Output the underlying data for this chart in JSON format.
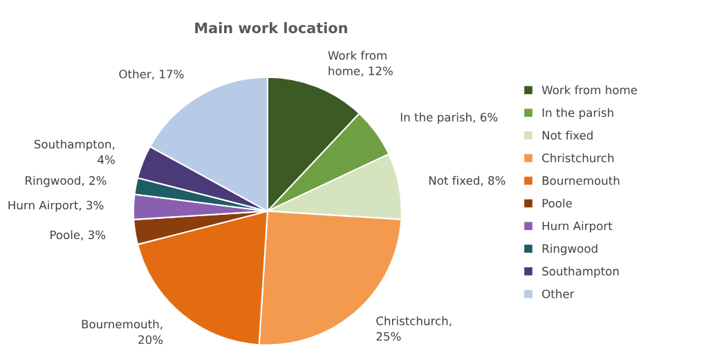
{
  "chart_data": {
    "type": "pie",
    "title": "Main work location",
    "categories": [
      "Work from home",
      "In the parish",
      "Not fixed",
      "Christchurch",
      "Bournemouth",
      "Poole",
      "Hurn Airport",
      "Ringwood",
      "Southampton",
      "Other"
    ],
    "values": [
      12,
      6,
      8,
      25,
      20,
      3,
      3,
      2,
      4,
      17
    ],
    "colors": [
      "#3b5a24",
      "#70a044",
      "#d6e3bf",
      "#f39a4f",
      "#e36c12",
      "#8a3e0e",
      "#8a5fb0",
      "#1e5c66",
      "#4a3a78",
      "#b7cbe6"
    ],
    "value_labels": [
      "Work from\nhome, 12%",
      "In the parish, 6%",
      "Not fixed, 8%",
      "Christchurch,\n25%",
      "Bournemouth,\n20%",
      "Poole, 3%",
      "Hurn Airport, 3%",
      "Ringwood, 2%",
      "Southampton,\n4%",
      "Other, 17%"
    ],
    "legend": "right"
  }
}
